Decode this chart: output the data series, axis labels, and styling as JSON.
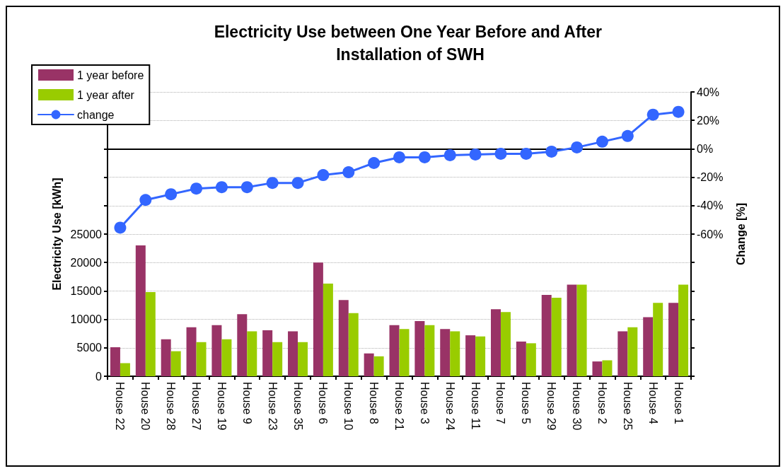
{
  "chart_data": {
    "type": "bar",
    "title": "Electricity Use between One Year Before and After Installation of SWH",
    "ylabel": "Electricity Use [kWh]",
    "y2label": "Change [%]",
    "categories": [
      "House 22",
      "House 20",
      "House 28",
      "House 27",
      "House 19",
      "House 9",
      "House 23",
      "House 35",
      "House 6",
      "House 10",
      "House 8",
      "House 21",
      "House 3",
      "House 24",
      "House 11",
      "House 7",
      "House 5",
      "House 29",
      "House 30",
      "House 2",
      "House 25",
      "House 4",
      "House 1"
    ],
    "series": [
      {
        "name": "1 year before",
        "color": "#993366",
        "values": [
          5100,
          23000,
          6500,
          8600,
          9000,
          10900,
          8100,
          7900,
          20000,
          13400,
          4000,
          9000,
          9700,
          8300,
          7200,
          11800,
          6100,
          14300,
          16100,
          2600,
          7900,
          10400,
          12900
        ]
      },
      {
        "name": "1 year after",
        "color": "#99cc00",
        "values": [
          2300,
          14800,
          4400,
          6000,
          6500,
          7900,
          6000,
          6000,
          16300,
          11100,
          3500,
          8300,
          9000,
          7900,
          7000,
          11300,
          5800,
          13800,
          16100,
          2800,
          8600,
          12900,
          16100
        ]
      },
      {
        "name": "change",
        "type": "line",
        "axis": "y2",
        "color": "#3366ff",
        "marker": "circle",
        "line_style": "solid",
        "values": [
          -55.5,
          -36,
          -32,
          -28,
          -27,
          -27,
          -24,
          -24,
          -18.5,
          -16.5,
          -10,
          -6,
          -6,
          -4.5,
          -4,
          -3.5,
          -3.5,
          -2,
          1,
          5,
          9,
          24,
          26
        ]
      }
    ],
    "ylim": [
      0,
      50000
    ],
    "yticks": [
      0,
      5000,
      10000,
      15000,
      20000,
      25000,
      {
        "value": 30000,
        "label": null
      },
      {
        "value": 35000,
        "label": null
      },
      {
        "value": 40000,
        "label": null
      },
      {
        "value": 45000,
        "label": null
      },
      {
        "value": 50000,
        "label": null
      }
    ],
    "y2lim": [
      -160,
      40
    ],
    "y2ticks": [
      {
        "value": -160,
        "label": null
      },
      {
        "value": -140,
        "label": null
      },
      {
        "value": -120,
        "label": null
      },
      {
        "value": -100,
        "label": null
      },
      {
        "value": -80,
        "label": null
      },
      {
        "value": -60,
        "label": "-60%"
      },
      {
        "value": -40,
        "label": "-40%"
      },
      {
        "value": -20,
        "label": "-20%"
      },
      {
        "value": 0,
        "label": "0%"
      },
      {
        "value": 20,
        "label": "20%"
      },
      {
        "value": 40,
        "label": "40%"
      }
    ],
    "ref_lines": [
      {
        "axis": "y2",
        "value": 0,
        "color": "#000000"
      }
    ],
    "grid": "y",
    "legend": "top left"
  }
}
